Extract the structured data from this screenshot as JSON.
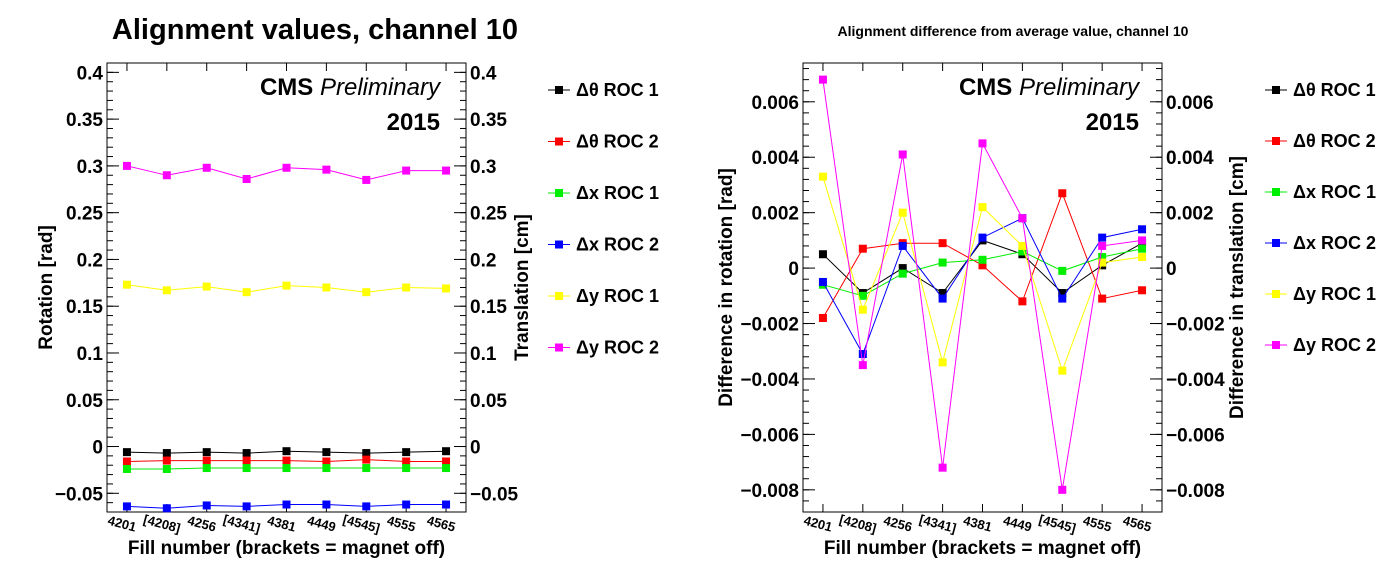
{
  "chart_data": [
    {
      "type": "line",
      "title": "Alignment values, channel 10",
      "xlabel": "Fill number (brackets = magnet off)",
      "ylabel": "Rotation [rad]",
      "y2label": "Translation [cm]",
      "ylim": [
        -0.07,
        0.41
      ],
      "yticks": [
        -0.05,
        0,
        0.05,
        0.1,
        0.15,
        0.2,
        0.25,
        0.3,
        0.35,
        0.4
      ],
      "ytick_labels": [
        "−0.05",
        "0",
        "0.05",
        "0.1",
        "0.15",
        "0.2",
        "0.25",
        "0.3",
        "0.35",
        "0.4"
      ],
      "categories": [
        "4201",
        "[4208]",
        "4256",
        "[4341]",
        "4381",
        "4449",
        "[4545]",
        "4555",
        "4565"
      ],
      "annotation": {
        "brand": "CMS",
        "label": "Preliminary",
        "year": "2015"
      },
      "series": [
        {
          "name": "Δθ ROC 1",
          "color": "#000000",
          "values": [
            -0.006,
            -0.007,
            -0.006,
            -0.007,
            -0.005,
            -0.006,
            -0.007,
            -0.006,
            -0.005
          ]
        },
        {
          "name": "Δθ ROC 2",
          "color": "#ff0000",
          "values": [
            -0.016,
            -0.015,
            -0.015,
            -0.015,
            -0.015,
            -0.016,
            -0.014,
            -0.016,
            -0.016
          ]
        },
        {
          "name": "Δx ROC 1",
          "color": "#00ee00",
          "values": [
            -0.024,
            -0.024,
            -0.023,
            -0.023,
            -0.023,
            -0.023,
            -0.023,
            -0.023,
            -0.023
          ]
        },
        {
          "name": "Δx ROC 2",
          "color": "#0000ff",
          "values": [
            -0.064,
            -0.066,
            -0.063,
            -0.064,
            -0.062,
            -0.062,
            -0.064,
            -0.062,
            -0.062
          ]
        },
        {
          "name": "Δy ROC 1",
          "color": "#ffff00",
          "values": [
            0.173,
            0.167,
            0.171,
            0.165,
            0.172,
            0.17,
            0.165,
            0.17,
            0.169
          ]
        },
        {
          "name": "Δy ROC 2",
          "color": "#ff00ff",
          "values": [
            0.3,
            0.29,
            0.298,
            0.286,
            0.298,
            0.296,
            0.285,
            0.295,
            0.295
          ]
        }
      ]
    },
    {
      "type": "line",
      "title": "Alignment difference from average value, channel 10",
      "xlabel": "Fill number (brackets = magnet off)",
      "ylabel": "Difference in rotation [rad]",
      "y2label": "Difference in translation [cm]",
      "ylim": [
        -0.0088,
        0.0074
      ],
      "yticks": [
        -0.008,
        -0.006,
        -0.004,
        -0.002,
        0,
        0.002,
        0.004,
        0.006
      ],
      "ytick_labels": [
        "−0.008",
        "−0.006",
        "−0.004",
        "−0.002",
        "0",
        "0.002",
        "0.004",
        "0.006"
      ],
      "y2tick_labels": [
        "−0.008",
        "−0.006",
        "−0.004",
        "−0.002",
        "0",
        "0.002",
        "0.004",
        "0.006"
      ],
      "categories": [
        "4201",
        "[4208]",
        "4256",
        "[4341]",
        "4381",
        "4449",
        "[4545]",
        "4555",
        "4565"
      ],
      "annotation": {
        "brand": "CMS",
        "label": "Preliminary",
        "year": "2015"
      },
      "series": [
        {
          "name": "Δθ ROC 1",
          "color": "#000000",
          "values": [
            0.0005,
            -0.0009,
            0.0,
            -0.0009,
            0.001,
            0.0005,
            -0.0009,
            0.0001,
            0.0009
          ]
        },
        {
          "name": "Δθ ROC 2",
          "color": "#ff0000",
          "values": [
            -0.0018,
            0.0007,
            0.0009,
            0.0009,
            0.0001,
            -0.0012,
            0.0027,
            -0.0011,
            -0.0008
          ]
        },
        {
          "name": "Δx ROC 1",
          "color": "#00ee00",
          "values": [
            -0.0006,
            -0.001,
            -0.0002,
            0.0002,
            0.0003,
            0.0006,
            -0.0001,
            0.0004,
            0.0007
          ]
        },
        {
          "name": "Δx ROC 2",
          "color": "#0000ff",
          "values": [
            -0.0005,
            -0.0031,
            0.0008,
            -0.0011,
            0.0011,
            0.0018,
            -0.0011,
            0.0011,
            0.0014
          ]
        },
        {
          "name": "Δy ROC 1",
          "color": "#ffff00",
          "values": [
            0.0033,
            -0.0015,
            0.002,
            -0.0034,
            0.0022,
            0.0008,
            -0.0037,
            0.0002,
            0.0004
          ]
        },
        {
          "name": "Δy ROC 2",
          "color": "#ff00ff",
          "values": [
            0.0068,
            -0.0035,
            0.0041,
            -0.0072,
            0.0045,
            0.0018,
            -0.008,
            0.0008,
            0.001
          ]
        }
      ]
    }
  ]
}
